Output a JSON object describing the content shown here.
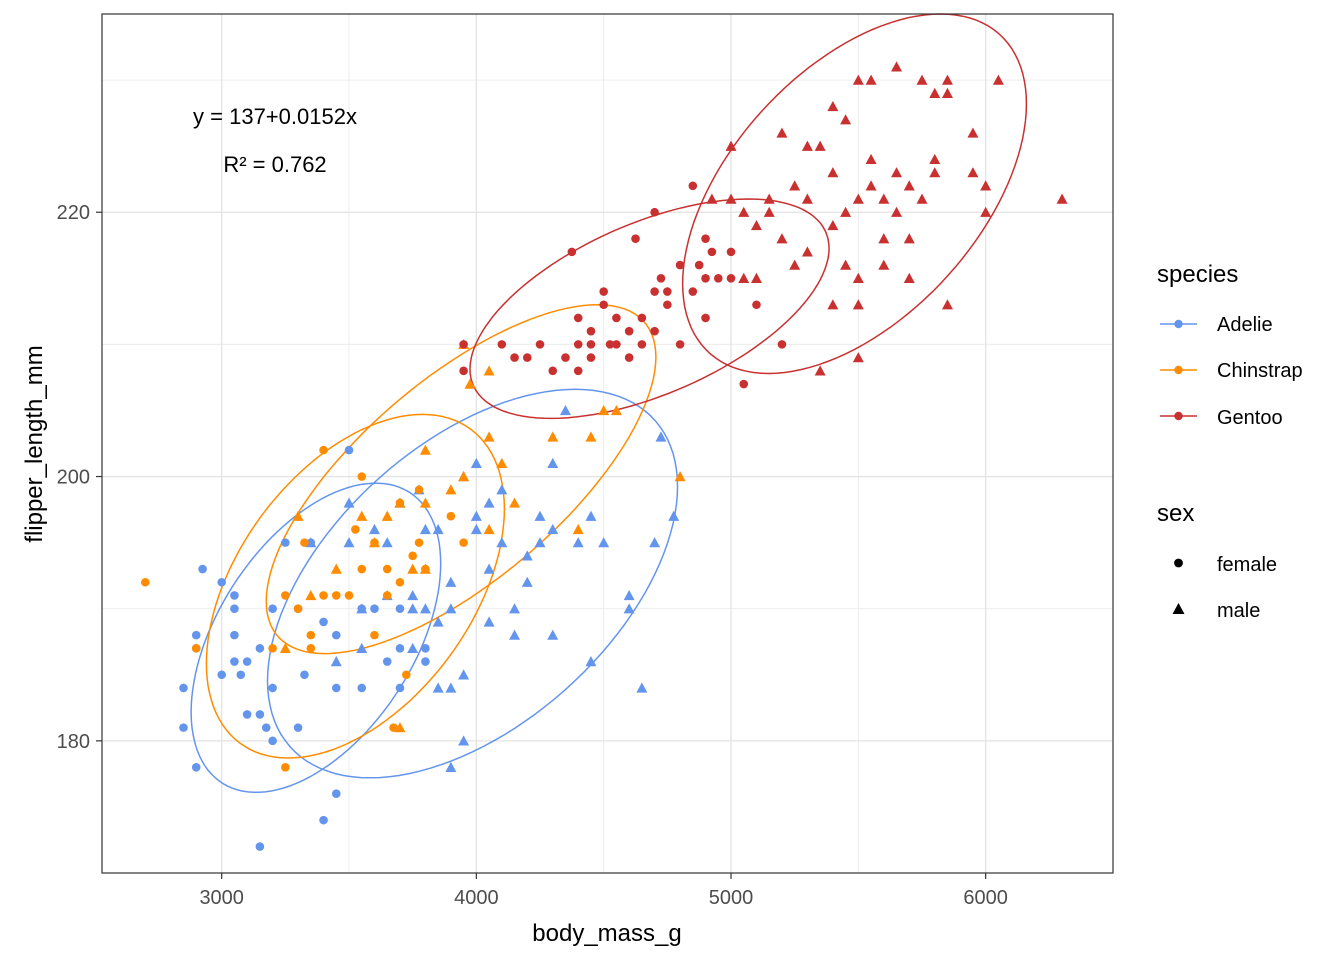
{
  "chart_data": {
    "type": "scatter",
    "title": "",
    "xlabel": "body_mass_g",
    "ylabel": "flipper_length_mm",
    "xlim": [
      2530,
      6500
    ],
    "ylim": [
      170,
      235
    ],
    "x_ticks": [
      3000,
      4000,
      5000,
      6000
    ],
    "y_ticks": [
      180,
      200,
      220
    ],
    "grid": true,
    "legend_position": "right",
    "annotations": {
      "equation": "y = 137+0.0152x",
      "r_squared": "R² = 0.762"
    },
    "legends": [
      {
        "title": "species",
        "entries": [
          {
            "label": "Adelie",
            "color": "#6495ED"
          },
          {
            "label": "Chinstrap",
            "color": "#FF8C00"
          },
          {
            "label": "Gentoo",
            "color": "#C93131"
          }
        ]
      },
      {
        "title": "sex",
        "entries": [
          {
            "label": "female",
            "shape": "circle"
          },
          {
            "label": "male",
            "shape": "triangle"
          }
        ]
      }
    ],
    "ellipses": [
      {
        "species": "Adelie",
        "sex": "female",
        "cx": 3370,
        "cy": 187.8,
        "rx": 490,
        "ry": 11.7,
        "r": 0.48
      },
      {
        "species": "Adelie",
        "sex": "male",
        "cx": 3985,
        "cy": 191.9,
        "rx": 805,
        "ry": 14.7,
        "r": 0.5
      },
      {
        "species": "Chinstrap",
        "sex": "female",
        "cx": 3525,
        "cy": 191.7,
        "rx": 585,
        "ry": 13.0,
        "r": 0.45
      },
      {
        "species": "Chinstrap",
        "sex": "male",
        "cx": 3940,
        "cy": 199.8,
        "rx": 765,
        "ry": 13.2,
        "r": 0.7
      },
      {
        "species": "Gentoo",
        "sex": "female",
        "cx": 4680,
        "cy": 212.7,
        "rx": 705,
        "ry": 8.3,
        "r": 0.55
      },
      {
        "species": "Gentoo",
        "sex": "male",
        "cx": 5485,
        "cy": 221.4,
        "rx": 675,
        "ry": 13.6,
        "r": 0.5
      }
    ],
    "series": [
      {
        "species": "Adelie",
        "sex": "female",
        "points": [
          [
            2850,
            184
          ],
          [
            2850,
            181
          ],
          [
            2900,
            188
          ],
          [
            2900,
            187
          ],
          [
            2900,
            178
          ],
          [
            2925,
            193
          ],
          [
            3000,
            192
          ],
          [
            3000,
            185
          ],
          [
            3050,
            191
          ],
          [
            3050,
            190
          ],
          [
            3050,
            186
          ],
          [
            3050,
            188
          ],
          [
            3075,
            185
          ],
          [
            3100,
            186
          ],
          [
            3100,
            182
          ],
          [
            3150,
            187
          ],
          [
            3150,
            182
          ],
          [
            3175,
            181
          ],
          [
            3200,
            184
          ],
          [
            3200,
            180
          ],
          [
            3250,
            195
          ],
          [
            3300,
            190
          ],
          [
            3300,
            181
          ],
          [
            3350,
            195
          ],
          [
            3400,
            174
          ],
          [
            3450,
            176
          ],
          [
            3450,
            184
          ],
          [
            3500,
            202
          ],
          [
            3550,
            190
          ],
          [
            3550,
            184
          ],
          [
            3600,
            190
          ],
          [
            3650,
            186
          ],
          [
            3700,
            184
          ],
          [
            3700,
            190
          ],
          [
            3700,
            187
          ],
          [
            3800,
            187
          ],
          [
            3800,
            186
          ],
          [
            3150,
            172
          ],
          [
            3325,
            185
          ],
          [
            3400,
            189
          ],
          [
            3200,
            190
          ],
          [
            3450,
            188
          ]
        ]
      },
      {
        "species": "Adelie",
        "sex": "male",
        "points": [
          [
            3350,
            195
          ],
          [
            3450,
            186
          ],
          [
            3500,
            195
          ],
          [
            3500,
            198
          ],
          [
            3550,
            190
          ],
          [
            3600,
            196
          ],
          [
            3650,
            195
          ],
          [
            3650,
            191
          ],
          [
            3700,
            198
          ],
          [
            3750,
            191
          ],
          [
            3750,
            190
          ],
          [
            3775,
            199
          ],
          [
            3800,
            196
          ],
          [
            3800,
            190
          ],
          [
            3850,
            184
          ],
          [
            3850,
            196
          ],
          [
            3900,
            178
          ],
          [
            3900,
            184
          ],
          [
            3900,
            190
          ],
          [
            3950,
            180
          ],
          [
            3950,
            185
          ],
          [
            4000,
            196
          ],
          [
            4000,
            197
          ],
          [
            4050,
            193
          ],
          [
            4050,
            189
          ],
          [
            4100,
            195
          ],
          [
            4150,
            190
          ],
          [
            4150,
            188
          ],
          [
            4200,
            194
          ],
          [
            4200,
            192
          ],
          [
            4250,
            195
          ],
          [
            4300,
            196
          ],
          [
            4300,
            188
          ],
          [
            4350,
            205
          ],
          [
            4400,
            195
          ],
          [
            4450,
            186
          ],
          [
            4450,
            197
          ],
          [
            4600,
            191
          ],
          [
            4600,
            190
          ],
          [
            4650,
            184
          ],
          [
            4700,
            195
          ],
          [
            4725,
            203
          ],
          [
            4775,
            197
          ],
          [
            4000,
            201
          ],
          [
            4050,
            198
          ],
          [
            3900,
            192
          ],
          [
            4250,
            197
          ],
          [
            4500,
            195
          ],
          [
            3550,
            187
          ],
          [
            3750,
            187
          ],
          [
            3950,
            200
          ],
          [
            4100,
            199
          ],
          [
            4300,
            201
          ],
          [
            3850,
            189
          ]
        ]
      },
      {
        "species": "Chinstrap",
        "sex": "female",
        "points": [
          [
            2700,
            192
          ],
          [
            2900,
            187
          ],
          [
            3250,
            178
          ],
          [
            3250,
            191
          ],
          [
            3300,
            190
          ],
          [
            3325,
            195
          ],
          [
            3350,
            187
          ],
          [
            3400,
            191
          ],
          [
            3400,
            202
          ],
          [
            3450,
            191
          ],
          [
            3500,
            191
          ],
          [
            3525,
            196
          ],
          [
            3550,
            200
          ],
          [
            3600,
            195
          ],
          [
            3600,
            188
          ],
          [
            3650,
            191
          ],
          [
            3650,
            193
          ],
          [
            3675,
            181
          ],
          [
            3700,
            198
          ],
          [
            3700,
            192
          ],
          [
            3725,
            185
          ],
          [
            3750,
            194
          ],
          [
            3775,
            195
          ],
          [
            3800,
            193
          ],
          [
            3900,
            197
          ],
          [
            3950,
            195
          ],
          [
            3200,
            187
          ],
          [
            3350,
            188
          ],
          [
            3550,
            193
          ],
          [
            3775,
            199
          ]
        ]
      },
      {
        "species": "Chinstrap",
        "sex": "male",
        "points": [
          [
            3250,
            187
          ],
          [
            3300,
            197
          ],
          [
            3350,
            191
          ],
          [
            3450,
            193
          ],
          [
            3550,
            197
          ],
          [
            3600,
            195
          ],
          [
            3650,
            197
          ],
          [
            3700,
            181
          ],
          [
            3700,
            198
          ],
          [
            3750,
            193
          ],
          [
            3800,
            198
          ],
          [
            3800,
            202
          ],
          [
            3800,
            193
          ],
          [
            3950,
            200
          ],
          [
            3950,
            210
          ],
          [
            3975,
            207
          ],
          [
            4050,
            208
          ],
          [
            4050,
            203
          ],
          [
            4100,
            201
          ],
          [
            4150,
            198
          ],
          [
            4300,
            203
          ],
          [
            4400,
            196
          ],
          [
            4450,
            203
          ],
          [
            4500,
            205
          ],
          [
            4550,
            205
          ],
          [
            4800,
            200
          ],
          [
            3900,
            199
          ],
          [
            4050,
            196
          ]
        ]
      },
      {
        "species": "Gentoo",
        "sex": "female",
        "points": [
          [
            3950,
            208
          ],
          [
            3950,
            210
          ],
          [
            4100,
            210
          ],
          [
            4150,
            209
          ],
          [
            4200,
            209
          ],
          [
            4250,
            210
          ],
          [
            4300,
            208
          ],
          [
            4350,
            209
          ],
          [
            4375,
            217
          ],
          [
            4400,
            210
          ],
          [
            4400,
            208
          ],
          [
            4450,
            211
          ],
          [
            4450,
            210
          ],
          [
            4500,
            213
          ],
          [
            4500,
            214
          ],
          [
            4550,
            212
          ],
          [
            4550,
            210
          ],
          [
            4600,
            209
          ],
          [
            4600,
            211
          ],
          [
            4625,
            218
          ],
          [
            4650,
            210
          ],
          [
            4650,
            212
          ],
          [
            4700,
            214
          ],
          [
            4700,
            220
          ],
          [
            4750,
            214
          ],
          [
            4750,
            213
          ],
          [
            4800,
            210
          ],
          [
            4850,
            222
          ],
          [
            4850,
            214
          ],
          [
            4875,
            216
          ],
          [
            4900,
            212
          ],
          [
            4900,
            215
          ],
          [
            4925,
            217
          ],
          [
            4950,
            215
          ],
          [
            5000,
            215
          ],
          [
            5050,
            207
          ],
          [
            5100,
            213
          ],
          [
            5200,
            210
          ],
          [
            4400,
            212
          ],
          [
            4800,
            216
          ],
          [
            4900,
            218
          ],
          [
            4700,
            211
          ],
          [
            4525,
            210
          ],
          [
            4725,
            215
          ],
          [
            5000,
            217
          ],
          [
            4450,
            209
          ]
        ]
      },
      {
        "species": "Gentoo",
        "sex": "male",
        "points": [
          [
            5000,
            221
          ],
          [
            5000,
            225
          ],
          [
            5050,
            215
          ],
          [
            5100,
            215
          ],
          [
            5150,
            220
          ],
          [
            5200,
            226
          ],
          [
            5250,
            222
          ],
          [
            5300,
            225
          ],
          [
            5300,
            217
          ],
          [
            5350,
            208
          ],
          [
            5400,
            223
          ],
          [
            5400,
            213
          ],
          [
            5450,
            220
          ],
          [
            5500,
            230
          ],
          [
            5500,
            215
          ],
          [
            5550,
            230
          ],
          [
            5550,
            224
          ],
          [
            5600,
            221
          ],
          [
            5650,
            231
          ],
          [
            5700,
            222
          ],
          [
            5750,
            230
          ],
          [
            5800,
            229
          ],
          [
            5850,
            230
          ],
          [
            5950,
            223
          ],
          [
            6000,
            222
          ],
          [
            6050,
            230
          ],
          [
            6300,
            221
          ],
          [
            5600,
            216
          ],
          [
            5700,
            218
          ],
          [
            5800,
            224
          ],
          [
            5400,
            219
          ],
          [
            5350,
            225
          ],
          [
            5450,
            227
          ],
          [
            5500,
            221
          ],
          [
            5100,
            219
          ],
          [
            5200,
            218
          ],
          [
            5250,
            216
          ],
          [
            5300,
            221
          ],
          [
            5400,
            228
          ],
          [
            5550,
            222
          ],
          [
            5650,
            223
          ],
          [
            5750,
            221
          ],
          [
            5850,
            213
          ],
          [
            6000,
            220
          ],
          [
            5500,
            209
          ],
          [
            5700,
            215
          ],
          [
            5800,
            223
          ],
          [
            5050,
            220
          ],
          [
            5150,
            221
          ],
          [
            5450,
            216
          ],
          [
            5600,
            218
          ],
          [
            5850,
            229
          ],
          [
            5950,
            226
          ],
          [
            5500,
            213
          ],
          [
            5650,
            220
          ],
          [
            4925,
            221
          ]
        ]
      }
    ]
  }
}
